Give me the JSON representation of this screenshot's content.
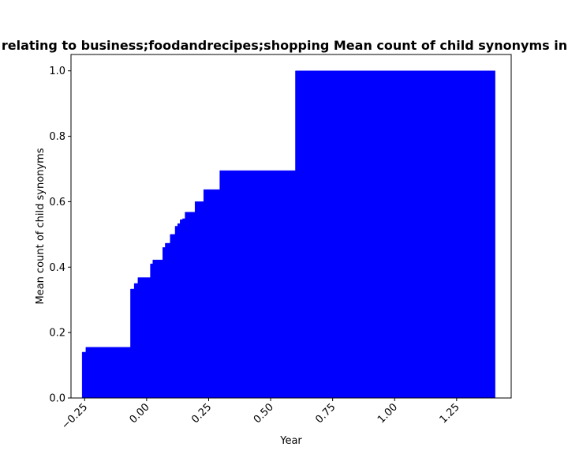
{
  "chart_data": {
    "type": "area",
    "title": "relating to business;foodandrecipes;shopping Mean count of child synonyms in p",
    "xlabel": "Year",
    "ylabel": "Mean count of child synonyms",
    "xlim": [
      -0.305,
      1.47
    ],
    "ylim": [
      0,
      1.05
    ],
    "xticks": [
      -0.25,
      0.0,
      0.25,
      0.5,
      0.75,
      1.0,
      1.25
    ],
    "xtick_labels": [
      "−0.25",
      "0.00",
      "0.25",
      "0.50",
      "0.75",
      "1.00",
      "1.25"
    ],
    "yticks": [
      0.0,
      0.2,
      0.4,
      0.6,
      0.8,
      1.0
    ],
    "ytick_labels": [
      "0.0",
      "0.2",
      "0.4",
      "0.6",
      "0.8",
      "1.0"
    ],
    "grid": false,
    "fill_color": "#0000ff",
    "step": "post",
    "x": [
      -0.26,
      -0.245,
      -0.065,
      -0.05,
      -0.035,
      0.015,
      0.025,
      0.065,
      0.075,
      0.095,
      0.115,
      0.125,
      0.135,
      0.145,
      0.155,
      0.175,
      0.195,
      0.23,
      0.295,
      0.6,
      1.405
    ],
    "y": [
      0.14,
      0.155,
      0.333,
      0.35,
      0.368,
      0.41,
      0.422,
      0.46,
      0.473,
      0.5,
      0.525,
      0.533,
      0.545,
      0.548,
      0.568,
      0.568,
      0.6,
      0.637,
      0.695,
      1.0,
      1.0
    ]
  }
}
